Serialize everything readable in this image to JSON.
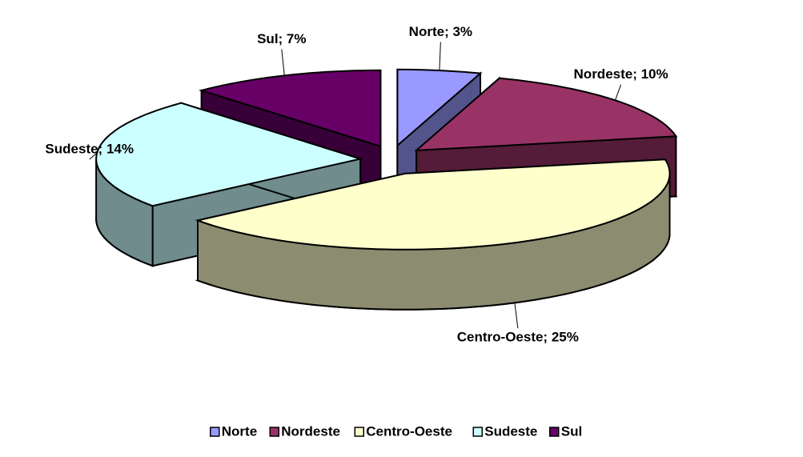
{
  "chart_data": {
    "type": "pie3d",
    "categories": [
      "Norte",
      "Nordeste",
      "Centro-Oeste",
      "Sudeste",
      "Sul"
    ],
    "values": [
      3,
      10,
      25,
      14,
      7
    ],
    "value_labels": [
      "Norte; 3%",
      "Nordeste; 10%",
      "Centro-Oeste; 25%",
      "Sudeste; 14%",
      "Sul; 7%"
    ],
    "colors": [
      "#9999ff",
      "#993366",
      "#ffffcc",
      "#ccffff",
      "#660066"
    ],
    "legend": "bottom"
  }
}
